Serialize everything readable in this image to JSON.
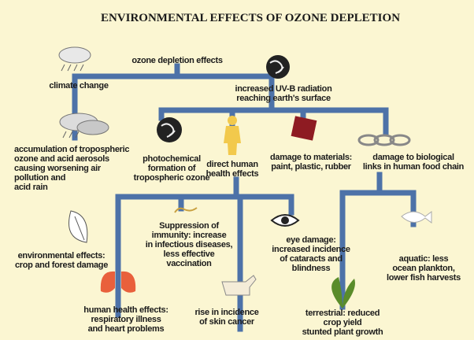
{
  "title": "ENVIRONMENTAL EFFECTS OF OZONE DEPLETION",
  "nodes": [
    {
      "lines": [
        "ozone depletion effects"
      ]
    },
    {
      "lines": [
        "climate change"
      ]
    },
    {
      "lines": [
        "increased UV-B radiation",
        "reaching earth's surface"
      ]
    },
    {
      "lines": [
        "accumulation of tropospheric",
        "ozone and acid aerosols",
        "causing worsening air",
        "pollution and",
        "acid rain"
      ]
    },
    {
      "lines": [
        "photochemical",
        "formation of",
        "tropospheric ozone"
      ]
    },
    {
      "lines": [
        "direct human",
        "health effects"
      ]
    },
    {
      "lines": [
        "damage to materials:",
        "paint, plastic, rubber"
      ]
    },
    {
      "lines": [
        "damage to biological",
        "links in human food chain"
      ]
    },
    {
      "lines": [
        "environmental effects:",
        "crop and forest damage"
      ]
    },
    {
      "lines": [
        "Suppression of",
        "immunity: increase",
        "in infectious diseases,",
        "less effective",
        "vaccination"
      ]
    },
    {
      "lines": [
        "eye damage:",
        "increased incidence",
        "of cataracts and",
        "blindness"
      ]
    },
    {
      "lines": [
        "aquatic: less",
        "ocean plankton,",
        "lower fish harvests"
      ]
    },
    {
      "lines": [
        "human health effects:",
        "respiratory illness",
        "and heart problems"
      ]
    },
    {
      "lines": [
        "rise in incidence",
        "of skin cancer"
      ]
    },
    {
      "lines": [
        "terrestrial: reduced",
        "crop yield",
        "stunted plant growth"
      ]
    }
  ]
}
